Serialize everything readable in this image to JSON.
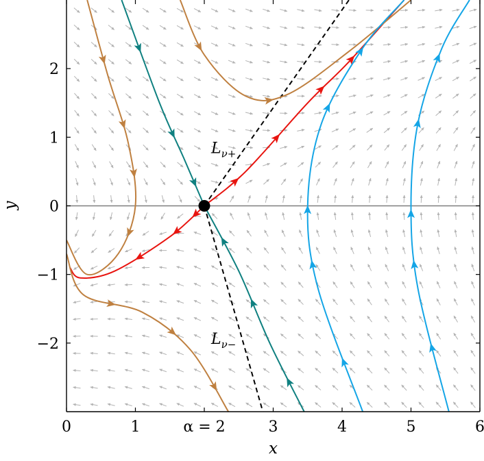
{
  "chart_data": {
    "type": "phase_portrait",
    "title": "",
    "xlabel": "x",
    "ylabel": "y",
    "xlim": [
      0,
      6
    ],
    "ylim": [
      -3,
      3
    ],
    "x_ticks": [
      {
        "value": 0,
        "label": "0"
      },
      {
        "value": 1,
        "label": "1"
      },
      {
        "value": 2,
        "label": "α = 2"
      },
      {
        "value": 3,
        "label": "3"
      },
      {
        "value": 4,
        "label": "4"
      },
      {
        "value": 5,
        "label": "5"
      },
      {
        "value": 6,
        "label": "6"
      }
    ],
    "y_ticks": [
      {
        "value": -2,
        "label": "−2"
      },
      {
        "value": -1,
        "label": "−1"
      },
      {
        "value": 0,
        "label": "0"
      },
      {
        "value": 1,
        "label": "1"
      },
      {
        "value": 2,
        "label": "2"
      }
    ],
    "equilibrium": {
      "x": 2,
      "y": 0
    },
    "annotations": [
      {
        "base": "L",
        "sub": "ν+",
        "x": 2.1,
        "y": 0.85
      },
      {
        "base": "L",
        "sub": "ν−",
        "x": 2.1,
        "y": -1.93
      }
    ],
    "eigenlines": [
      {
        "name": "L_nu_plus",
        "points": [
          [
            2,
            0
          ],
          [
            4.1,
            3.0
          ]
        ]
      },
      {
        "name": "L_nu_minus",
        "points": [
          [
            2,
            0
          ],
          [
            2.85,
            -3.0
          ]
        ]
      }
    ],
    "colors": {
      "quiver": "#b3b3b3",
      "separatrix": "#e8140f",
      "stable_manifold": "#0f8080",
      "orbit_brown": "#bf8040",
      "orbit_cyan": "#14a5e6",
      "axis_line": "#7f7f7f"
    },
    "trajectories": [
      {
        "name": "stable-manifold-upper",
        "color": "#0f8080",
        "points": [
          [
            0.8,
            3.0
          ],
          [
            1.35,
            1.5
          ],
          [
            1.7,
            0.7
          ],
          [
            2.0,
            0.0
          ]
        ],
        "arrows": [
          {
            "t": 0.5,
            "dir": 1
          },
          {
            "t": 1.5,
            "dir": 1
          },
          {
            "t": 2.45,
            "dir": 1
          }
        ]
      },
      {
        "name": "stable-manifold-lower",
        "color": "#0f8080",
        "points": [
          [
            3.45,
            -3.0
          ],
          [
            2.95,
            -2.0
          ],
          [
            2.5,
            -0.95
          ],
          [
            2.0,
            0.0
          ]
        ],
        "arrows": [
          {
            "t": 0.5,
            "dir": 1
          },
          {
            "t": 1.55,
            "dir": 1
          },
          {
            "t": 2.4,
            "dir": 1
          }
        ]
      },
      {
        "name": "unstable-manifold-upper",
        "color": "#e8140f",
        "points": [
          [
            2.0,
            0.0
          ],
          [
            2.6,
            0.5
          ],
          [
            3.5,
            1.5
          ],
          [
            4.1,
            2.1
          ],
          [
            4.9,
            3.0
          ]
        ],
        "arrows": [
          {
            "t": 0.8,
            "dir": 1
          },
          {
            "t": 1.5,
            "dir": 1
          },
          {
            "t": 2.3,
            "dir": 1
          },
          {
            "t": 3.05,
            "dir": 1
          }
        ]
      },
      {
        "name": "unstable-manifold-lower",
        "color": "#e8140f",
        "points": [
          [
            2.0,
            0.0
          ],
          [
            1.5,
            -0.45
          ],
          [
            0.7,
            -0.95
          ],
          [
            0.2,
            -1.05
          ],
          [
            0.05,
            -0.9
          ]
        ],
        "arrows": [
          {
            "t": 0.35,
            "dir": 1
          },
          {
            "t": 0.85,
            "dir": 1
          },
          {
            "t": 1.55,
            "dir": 1
          }
        ]
      },
      {
        "name": "orbit-brown-1",
        "color": "#bf8040",
        "points": [
          [
            0.3,
            3.0
          ],
          [
            0.6,
            1.9
          ],
          [
            0.9,
            0.9
          ],
          [
            1.0,
            0.0
          ],
          [
            0.75,
            -0.7
          ],
          [
            0.3,
            -1.0
          ],
          [
            0.0,
            -0.5
          ]
        ],
        "arrows": [
          {
            "t": 0.8,
            "dir": 1
          },
          {
            "t": 1.7,
            "dir": 1
          },
          {
            "t": 2.45,
            "dir": 1
          },
          {
            "t": 3.5,
            "dir": 1
          }
        ]
      },
      {
        "name": "orbit-brown-2",
        "color": "#bf8040",
        "points": [
          [
            1.65,
            3.0
          ],
          [
            2.0,
            2.2
          ],
          [
            2.6,
            1.6
          ],
          [
            3.2,
            1.62
          ],
          [
            4.1,
            2.25
          ],
          [
            5.0,
            3.0
          ]
        ],
        "arrows": [
          {
            "t": 0.85,
            "dir": 1
          },
          {
            "t": 2.6,
            "dir": 1
          }
        ]
      },
      {
        "name": "orbit-brown-3",
        "color": "#bf8040",
        "points": [
          [
            0.0,
            -0.7
          ],
          [
            0.25,
            -1.3
          ],
          [
            1.1,
            -1.55
          ],
          [
            1.8,
            -2.1
          ],
          [
            2.35,
            -3.0
          ]
        ],
        "arrows": [
          {
            "t": 1.5,
            "dir": 1
          },
          {
            "t": 2.6,
            "dir": 1
          },
          {
            "t": 3.55,
            "dir": 1
          }
        ]
      },
      {
        "name": "orbit-cyan-1",
        "color": "#14a5e6",
        "points": [
          [
            4.3,
            -3.0
          ],
          [
            3.65,
            -1.2
          ],
          [
            3.5,
            0.0
          ],
          [
            3.7,
            1.2
          ],
          [
            4.3,
            2.3
          ],
          [
            4.9,
            3.0
          ]
        ],
        "arrows": [
          {
            "t": 0.45,
            "dir": 1
          },
          {
            "t": 1.25,
            "dir": 1
          },
          {
            "t": 1.95,
            "dir": 1
          },
          {
            "t": 3.2,
            "dir": 1
          },
          {
            "t": 3.95,
            "dir": 1
          }
        ]
      },
      {
        "name": "orbit-cyan-2",
        "color": "#14a5e6",
        "points": [
          [
            5.55,
            -3.0
          ],
          [
            5.1,
            -1.2
          ],
          [
            5.0,
            0.0
          ],
          [
            5.1,
            1.2
          ],
          [
            5.45,
            2.3
          ],
          [
            5.85,
            3.0
          ]
        ],
        "arrows": [
          {
            "t": 0.55,
            "dir": 1
          },
          {
            "t": 1.25,
            "dir": 1
          },
          {
            "t": 1.9,
            "dir": 1
          },
          {
            "t": 3.0,
            "dir": 1
          },
          {
            "t": 3.85,
            "dir": 1
          }
        ]
      }
    ]
  }
}
